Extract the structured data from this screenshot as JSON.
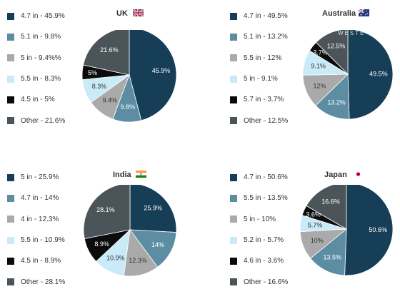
{
  "colors": {
    "c1": "#173e57",
    "c2": "#5d8da3",
    "c3": "#aaaaaa",
    "c4": "#c9eaf6",
    "c5": "#0b0b0b",
    "c6": "#4b5458"
  },
  "watermark": "WESTE",
  "chart_data": [
    {
      "type": "pie",
      "title": "UK",
      "flag": "uk-flag",
      "legend": [
        "4.7 in - 45.9%",
        "5.1 in - 9.8%",
        "5 in - 9.4%%",
        "5.5 in - 8.3%",
        "4.5 in - 5%",
        "Other - 21.6%"
      ],
      "slices": [
        {
          "category": "4.7 in",
          "value": 45.9,
          "label": "45.9%",
          "color_key": "c1"
        },
        {
          "category": "5.1 in",
          "value": 9.8,
          "label": "9.8%",
          "color_key": "c2"
        },
        {
          "category": "5 in",
          "value": 9.4,
          "label": "9.4%",
          "color_key": "c3"
        },
        {
          "category": "5.5 in",
          "value": 8.3,
          "label": "8.3%",
          "color_key": "c4"
        },
        {
          "category": "4.5 in",
          "value": 5.0,
          "label": "5%",
          "color_key": "c5"
        },
        {
          "category": "Other",
          "value": 21.6,
          "label": "21.6%",
          "color_key": "c6"
        }
      ]
    },
    {
      "type": "pie",
      "title": "Australia",
      "flag": "australia-flag",
      "legend": [
        "4.7 in - 49.5%",
        "5.1 in - 13.2%",
        "5.5 in - 12%",
        "5 in - 9.1%",
        "5.7 in - 3.7%",
        "Other - 12.5%"
      ],
      "slices": [
        {
          "category": "4.7 in",
          "value": 49.5,
          "label": "49.5%",
          "color_key": "c1"
        },
        {
          "category": "5.1 in",
          "value": 13.2,
          "label": "13.2%",
          "color_key": "c2"
        },
        {
          "category": "5.5 in",
          "value": 12.0,
          "label": "12%",
          "color_key": "c3"
        },
        {
          "category": "5 in",
          "value": 9.1,
          "label": "9.1%",
          "color_key": "c4"
        },
        {
          "category": "5.7 in",
          "value": 3.7,
          "label": "3.7%",
          "color_key": "c5"
        },
        {
          "category": "Other",
          "value": 12.5,
          "label": "12.5%",
          "color_key": "c6"
        }
      ]
    },
    {
      "type": "pie",
      "title": "India",
      "flag": "india-flag",
      "legend": [
        "5 in - 25.9%",
        "4.7 in - 14%",
        "4 in - 12.3%",
        "5.5 in - 10.9%",
        "4.5 in - 8.9%",
        "Other - 28.1%"
      ],
      "slices": [
        {
          "category": "5 in",
          "value": 25.9,
          "label": "25.9%",
          "color_key": "c1"
        },
        {
          "category": "4.7 in",
          "value": 14.0,
          "label": "14%",
          "color_key": "c2"
        },
        {
          "category": "4 in",
          "value": 12.3,
          "label": "12.3%",
          "color_key": "c3"
        },
        {
          "category": "5.5 in",
          "value": 10.9,
          "label": "10.9%",
          "color_key": "c4"
        },
        {
          "category": "4.5 in",
          "value": 8.9,
          "label": "8.9%",
          "color_key": "c5"
        },
        {
          "category": "Other",
          "value": 28.1,
          "label": "28.1%",
          "color_key": "c6"
        }
      ]
    },
    {
      "type": "pie",
      "title": "Japan",
      "flag": "japan-flag",
      "legend": [
        "4.7 in - 50.6%",
        "5.5 in - 13.5%",
        "5 in - 10%",
        "5.2 in - 5.7%",
        "4.6 in - 3.6%",
        "Other - 16.6%"
      ],
      "slices": [
        {
          "category": "4.7 in",
          "value": 50.6,
          "label": "50.6%",
          "color_key": "c1"
        },
        {
          "category": "5.5 in",
          "value": 13.5,
          "label": "13.5%",
          "color_key": "c2"
        },
        {
          "category": "5 in",
          "value": 10.0,
          "label": "10%",
          "color_key": "c3"
        },
        {
          "category": "5.2 in",
          "value": 5.7,
          "label": "5.7%",
          "color_key": "c4"
        },
        {
          "category": "4.6 in",
          "value": 3.6,
          "label": "3.6%",
          "color_key": "c5"
        },
        {
          "category": "Other",
          "value": 16.6,
          "label": "16.6%",
          "color_key": "c6"
        }
      ]
    }
  ]
}
